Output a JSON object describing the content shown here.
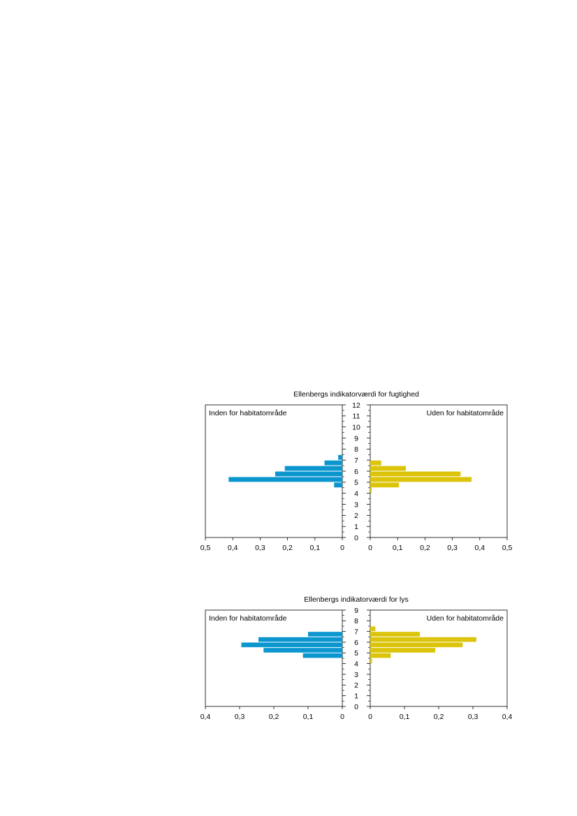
{
  "colors": {
    "inside": "#0b96cf",
    "outside": "#dbc40a",
    "axis": "#000000"
  },
  "chart_data": [
    {
      "type": "bar",
      "orientation": "horizontal-back-to-back",
      "title": "Ellenbergs indikatorværdi for fugtighed",
      "categories": [
        "0",
        "1",
        "2",
        "3",
        "4",
        "5",
        "6",
        "7",
        "8",
        "9",
        "10",
        "11",
        "12"
      ],
      "yticks": [
        "0",
        "1",
        "2",
        "3",
        "4",
        "5",
        "6",
        "7",
        "8",
        "9",
        "10",
        "11",
        "12"
      ],
      "ylim": [
        0,
        12
      ],
      "bin_width": 0.5,
      "xlim_left": [
        0,
        0.5
      ],
      "xlim_right": [
        0,
        0.5
      ],
      "xticks_left": [
        "0,5",
        "0,4",
        "0,3",
        "0,2",
        "0,1",
        "0"
      ],
      "xticks_right": [
        "0",
        "0,1",
        "0,2",
        "0,3",
        "0,4",
        "0,5"
      ],
      "grid": false,
      "series": [
        {
          "name": "Inden for habitatområde",
          "side": "left",
          "bins": [
            {
              "from": 4.5,
              "to": 5.0,
              "value": 0.03
            },
            {
              "from": 5.0,
              "to": 5.5,
              "value": 0.415
            },
            {
              "from": 5.5,
              "to": 6.0,
              "value": 0.245
            },
            {
              "from": 6.0,
              "to": 6.5,
              "value": 0.21
            },
            {
              "from": 6.5,
              "to": 7.0,
              "value": 0.065
            },
            {
              "from": 7.0,
              "to": 7.5,
              "value": 0.015
            }
          ]
        },
        {
          "name": "Uden for habitatområde",
          "side": "right",
          "bins": [
            {
              "from": 4.0,
              "to": 4.5,
              "value": 0.005
            },
            {
              "from": 4.5,
              "to": 5.0,
              "value": 0.105
            },
            {
              "from": 5.0,
              "to": 5.5,
              "value": 0.37
            },
            {
              "from": 5.5,
              "to": 6.0,
              "value": 0.33
            },
            {
              "from": 6.0,
              "to": 6.5,
              "value": 0.13
            },
            {
              "from": 6.5,
              "to": 7.0,
              "value": 0.04
            }
          ]
        }
      ]
    },
    {
      "type": "bar",
      "orientation": "horizontal-back-to-back",
      "title": "Ellenbergs indikatorværdi for lys",
      "categories": [
        "0",
        "1",
        "2",
        "3",
        "4",
        "5",
        "6",
        "7",
        "8",
        "9"
      ],
      "yticks": [
        "0",
        "1",
        "2",
        "3",
        "4",
        "5",
        "6",
        "7",
        "8",
        "9"
      ],
      "ylim": [
        0,
        9
      ],
      "bin_width": 0.5,
      "xlim_left": [
        0,
        0.4
      ],
      "xlim_right": [
        0,
        0.4
      ],
      "xticks_left": [
        "0,4",
        "0,3",
        "0,2",
        "0,1",
        "0"
      ],
      "xticks_right": [
        "0",
        "0,1",
        "0,2",
        "0,3",
        "0,4"
      ],
      "grid": false,
      "series": [
        {
          "name": "Inden for habitatområde",
          "side": "left",
          "bins": [
            {
              "from": 4.5,
              "to": 5.0,
              "value": 0.115
            },
            {
              "from": 5.0,
              "to": 5.5,
              "value": 0.23
            },
            {
              "from": 5.5,
              "to": 6.0,
              "value": 0.295
            },
            {
              "from": 6.0,
              "to": 6.5,
              "value": 0.245
            },
            {
              "from": 6.5,
              "to": 7.0,
              "value": 0.1
            }
          ]
        },
        {
          "name": "Uden for habitatområde",
          "side": "right",
          "bins": [
            {
              "from": 4.0,
              "to": 4.5,
              "value": 0.005
            },
            {
              "from": 4.5,
              "to": 5.0,
              "value": 0.06
            },
            {
              "from": 5.0,
              "to": 5.5,
              "value": 0.19
            },
            {
              "from": 5.5,
              "to": 6.0,
              "value": 0.27
            },
            {
              "from": 6.0,
              "to": 6.5,
              "value": 0.31
            },
            {
              "from": 6.5,
              "to": 7.0,
              "value": 0.145
            },
            {
              "from": 7.0,
              "to": 7.5,
              "value": 0.015
            }
          ]
        }
      ]
    }
  ]
}
